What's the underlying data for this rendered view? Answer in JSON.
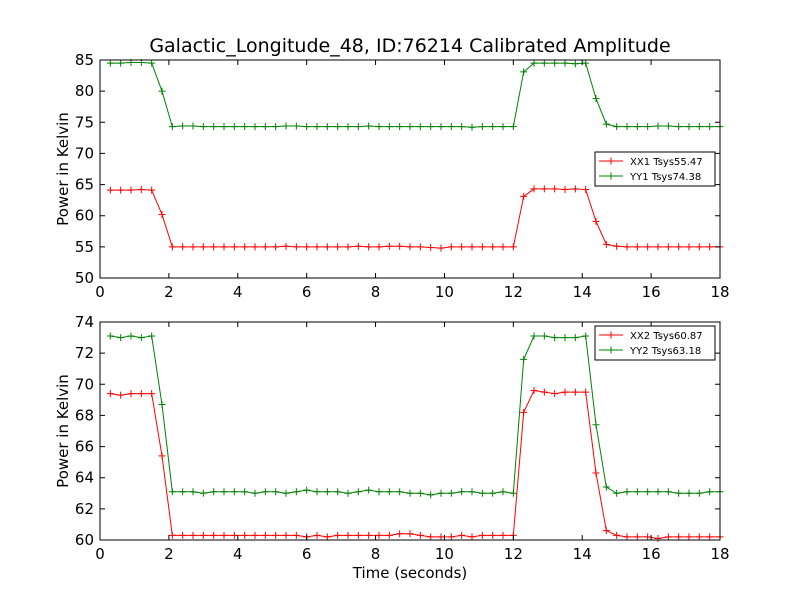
{
  "title": "Galactic_Longitude_48, ID:76214 Calibrated Amplitude",
  "chart_data": [
    {
      "type": "line",
      "xlabel": "",
      "ylabel": "Power in Kelvin",
      "xlim": [
        0,
        18
      ],
      "ylim": [
        50,
        85
      ],
      "xticks": [
        0,
        2,
        4,
        6,
        8,
        10,
        12,
        14,
        16,
        18
      ],
      "yticks": [
        50,
        55,
        60,
        65,
        70,
        75,
        80,
        85
      ],
      "grid": false,
      "legend_position": "center-right",
      "x": [
        0.3,
        0.6,
        0.9,
        1.2,
        1.5,
        1.8,
        2.1,
        2.4,
        2.7,
        3.0,
        3.3,
        3.6,
        3.9,
        4.2,
        4.5,
        4.8,
        5.1,
        5.4,
        5.7,
        6.0,
        6.3,
        6.6,
        6.9,
        7.2,
        7.5,
        7.8,
        8.1,
        8.4,
        8.7,
        9.0,
        9.3,
        9.6,
        9.9,
        10.2,
        10.5,
        10.8,
        11.1,
        11.4,
        11.7,
        12.0,
        12.3,
        12.6,
        12.9,
        13.2,
        13.5,
        13.8,
        14.1,
        14.4,
        14.7,
        15.0,
        15.3,
        15.6,
        15.9,
        16.2,
        16.5,
        16.8,
        17.1,
        17.4,
        17.7,
        18.0
      ],
      "series": [
        {
          "name": "XX1 Tsys55.47",
          "color": "#ff0000",
          "values": [
            64.1,
            64.1,
            64.1,
            64.2,
            64.1,
            60.2,
            55.0,
            55.0,
            55.0,
            55.0,
            55.0,
            55.0,
            55.0,
            55.0,
            55.0,
            55.0,
            55.0,
            55.1,
            55.0,
            55.0,
            55.0,
            55.0,
            55.0,
            55.0,
            55.1,
            55.0,
            55.0,
            55.1,
            55.1,
            55.0,
            55.0,
            54.9,
            54.8,
            55.0,
            55.0,
            55.0,
            55.0,
            55.0,
            55.0,
            55.0,
            63.1,
            64.3,
            64.3,
            64.3,
            64.2,
            64.3,
            64.2,
            59.1,
            55.4,
            55.1,
            55.0,
            55.0,
            55.0,
            55.0,
            55.0,
            55.0,
            55.0,
            55.0,
            55.0,
            55.0
          ]
        },
        {
          "name": "YY1 Tsys74.38",
          "color": "#008000",
          "values": [
            84.5,
            84.5,
            84.6,
            84.6,
            84.5,
            80.0,
            74.3,
            74.4,
            74.4,
            74.3,
            74.3,
            74.3,
            74.3,
            74.3,
            74.3,
            74.3,
            74.3,
            74.4,
            74.4,
            74.3,
            74.3,
            74.3,
            74.3,
            74.3,
            74.3,
            74.4,
            74.3,
            74.3,
            74.3,
            74.3,
            74.3,
            74.3,
            74.3,
            74.3,
            74.3,
            74.2,
            74.3,
            74.3,
            74.3,
            74.3,
            83.1,
            84.5,
            84.5,
            84.5,
            84.5,
            84.4,
            84.5,
            78.8,
            74.7,
            74.3,
            74.3,
            74.3,
            74.3,
            74.4,
            74.4,
            74.3,
            74.3,
            74.3,
            74.3,
            74.3
          ]
        }
      ]
    },
    {
      "type": "line",
      "xlabel": "Time (seconds)",
      "ylabel": "Power in Kelvin",
      "xlim": [
        0,
        18
      ],
      "ylim": [
        60,
        74
      ],
      "xticks": [
        0,
        2,
        4,
        6,
        8,
        10,
        12,
        14,
        16,
        18
      ],
      "yticks": [
        60,
        62,
        64,
        66,
        68,
        70,
        72,
        74
      ],
      "grid": false,
      "legend_position": "top-right",
      "x": [
        0.3,
        0.6,
        0.9,
        1.2,
        1.5,
        1.8,
        2.1,
        2.4,
        2.7,
        3.0,
        3.3,
        3.6,
        3.9,
        4.2,
        4.5,
        4.8,
        5.1,
        5.4,
        5.7,
        6.0,
        6.3,
        6.6,
        6.9,
        7.2,
        7.5,
        7.8,
        8.1,
        8.4,
        8.7,
        9.0,
        9.3,
        9.6,
        9.9,
        10.2,
        10.5,
        10.8,
        11.1,
        11.4,
        11.7,
        12.0,
        12.3,
        12.6,
        12.9,
        13.2,
        13.5,
        13.8,
        14.1,
        14.4,
        14.7,
        15.0,
        15.3,
        15.6,
        15.9,
        16.2,
        16.5,
        16.8,
        17.1,
        17.4,
        17.7,
        18.0
      ],
      "series": [
        {
          "name": "XX2 Tsys60.87",
          "color": "#ff0000",
          "values": [
            69.4,
            69.3,
            69.4,
            69.4,
            69.4,
            65.4,
            60.3,
            60.3,
            60.3,
            60.3,
            60.3,
            60.3,
            60.3,
            60.3,
            60.3,
            60.3,
            60.3,
            60.3,
            60.3,
            60.2,
            60.3,
            60.2,
            60.3,
            60.3,
            60.3,
            60.3,
            60.3,
            60.3,
            60.4,
            60.4,
            60.3,
            60.2,
            60.2,
            60.2,
            60.3,
            60.2,
            60.3,
            60.3,
            60.3,
            60.3,
            68.2,
            69.6,
            69.5,
            69.4,
            69.5,
            69.5,
            69.5,
            64.3,
            60.6,
            60.3,
            60.2,
            60.2,
            60.2,
            60.1,
            60.2,
            60.2,
            60.2,
            60.2,
            60.2,
            60.2
          ]
        },
        {
          "name": "YY2 Tsys63.18",
          "color": "#008000",
          "values": [
            73.1,
            73.0,
            73.1,
            73.0,
            73.1,
            68.7,
            63.1,
            63.1,
            63.1,
            63.0,
            63.1,
            63.1,
            63.1,
            63.1,
            63.0,
            63.1,
            63.1,
            63.0,
            63.1,
            63.2,
            63.1,
            63.1,
            63.1,
            63.0,
            63.1,
            63.2,
            63.1,
            63.1,
            63.1,
            63.0,
            63.0,
            62.9,
            63.0,
            63.0,
            63.1,
            63.1,
            63.0,
            63.0,
            63.1,
            63.0,
            71.6,
            73.1,
            73.1,
            73.0,
            73.0,
            73.0,
            73.1,
            67.4,
            63.4,
            63.0,
            63.1,
            63.1,
            63.1,
            63.1,
            63.1,
            63.0,
            63.0,
            63.0,
            63.1,
            63.1
          ]
        }
      ]
    }
  ]
}
